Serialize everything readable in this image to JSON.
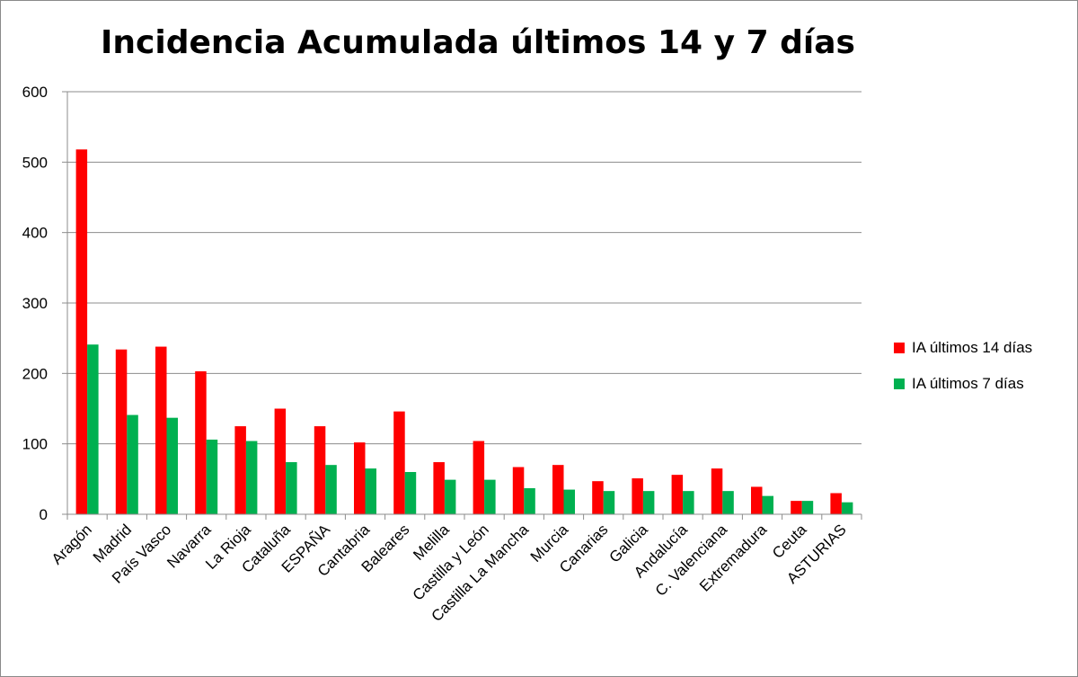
{
  "chart_data": {
    "type": "bar",
    "title": "Incidencia Acumulada últimos 14 y 7 días",
    "xlabel": "",
    "ylabel": "",
    "ylim": [
      0,
      600
    ],
    "yticks": [
      0,
      100,
      200,
      300,
      400,
      500,
      600
    ],
    "grid": true,
    "legend_position": "right",
    "categories": [
      "Aragón",
      "Madrid",
      "País Vasco",
      "Navarra",
      "La Rioja",
      "Cataluña",
      "ESPAÑA",
      "Cantabria",
      "Baleares",
      "Melilla",
      "Castilla y León",
      "Castilla La Mancha",
      "Murcia",
      "Canarias",
      "Galicia",
      "Andalucía",
      "C. Valenciana",
      "Extremadura",
      "Ceuta",
      "ASTURIAS"
    ],
    "series": [
      {
        "name": "IA últimos 14 días",
        "color": "#ff0000",
        "values": [
          518,
          234,
          238,
          203,
          125,
          150,
          125,
          102,
          146,
          74,
          104,
          67,
          70,
          47,
          51,
          56,
          65,
          39,
          19,
          30
        ]
      },
      {
        "name": "IA últimos 7 días",
        "color": "#00b050",
        "values": [
          241,
          141,
          137,
          106,
          104,
          74,
          70,
          65,
          60,
          49,
          49,
          37,
          35,
          33,
          33,
          33,
          33,
          26,
          19,
          17
        ]
      }
    ]
  }
}
